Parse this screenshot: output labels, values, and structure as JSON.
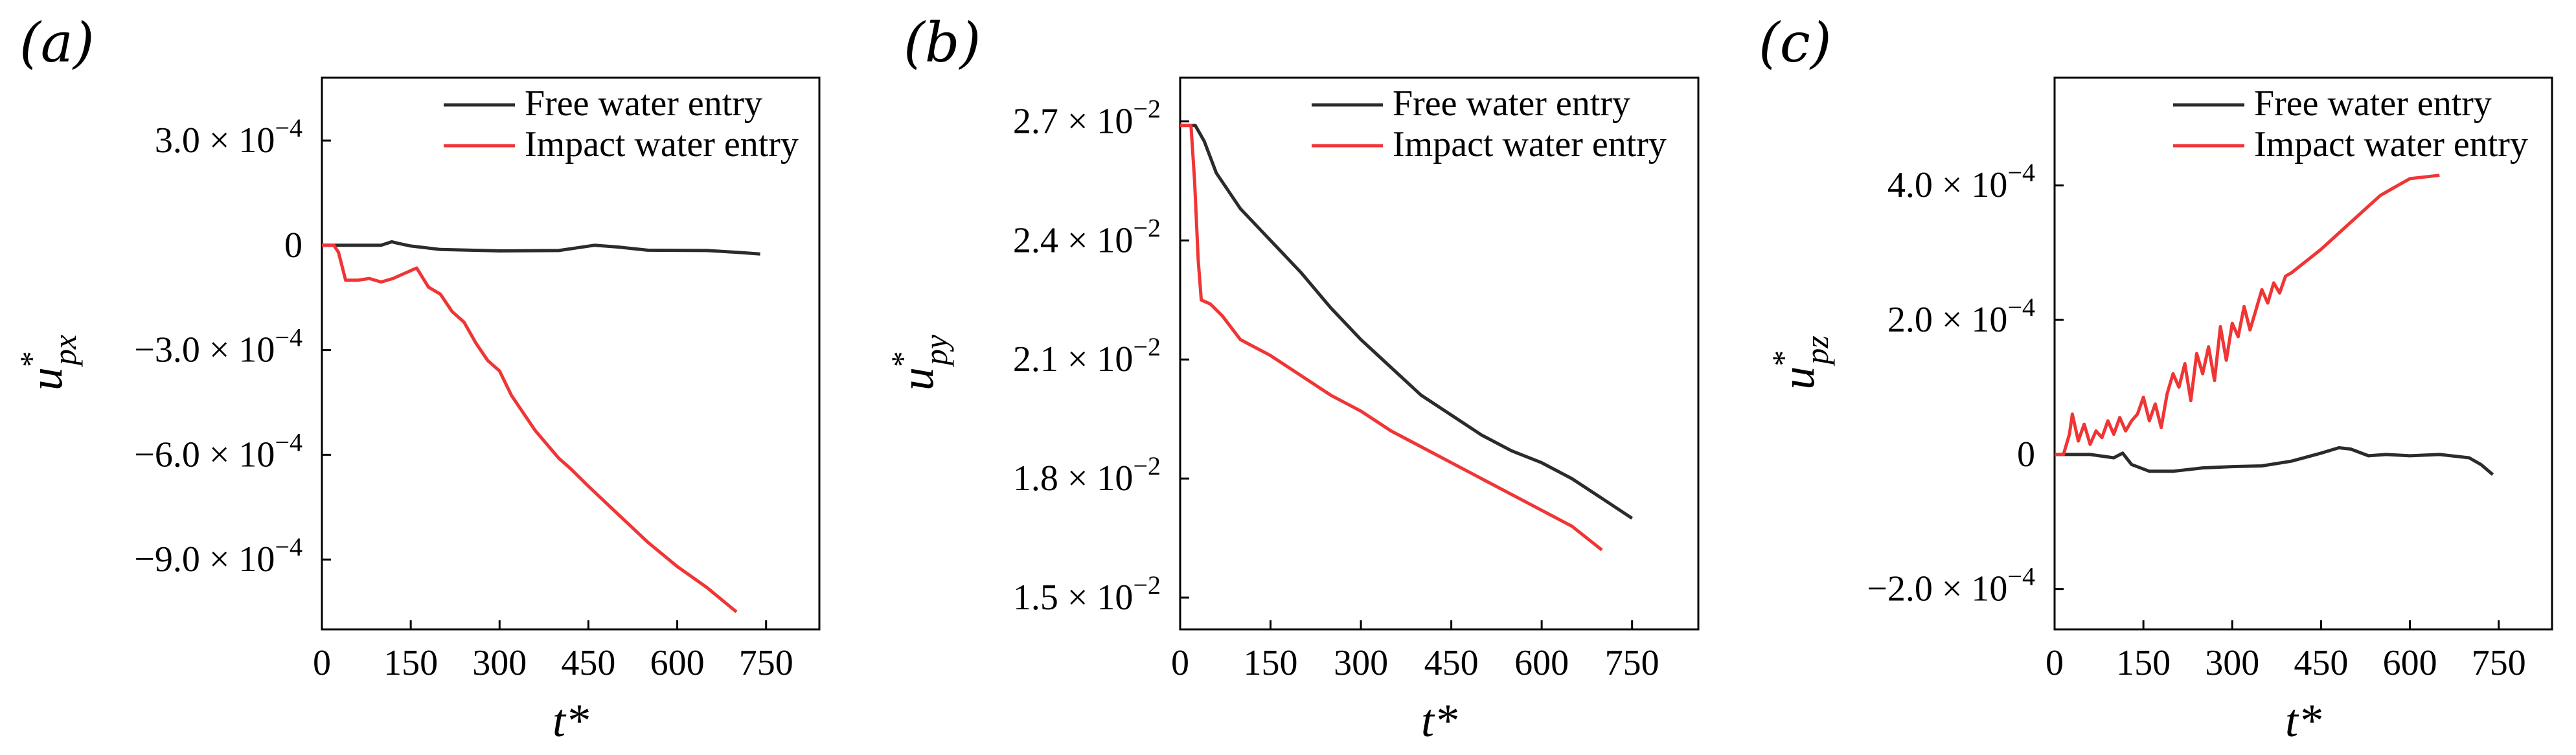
{
  "chart_data": [
    {
      "panel": "(a)",
      "type": "line",
      "ylabel": {
        "main": "u",
        "sub": "px",
        "sup": "*"
      },
      "xlabel": "t*",
      "xlim": [
        0,
        840
      ],
      "ylim": [
        -11.0,
        4.8
      ],
      "xticks": [
        0,
        150,
        300,
        450,
        600,
        750
      ],
      "xtick_labels": [
        "0",
        "150",
        "300",
        "450",
        "600",
        "750"
      ],
      "yticks": [
        3.0,
        0,
        -3.0,
        -6.0,
        -9.0
      ],
      "ytick_labels": [
        {
          "mant": "3.0 × 10",
          "exp": "−4"
        },
        {
          "mant": "0",
          "exp": ""
        },
        {
          "mant": "−3.0 × 10",
          "exp": "−4"
        },
        {
          "mant": "−6.0 × 10",
          "exp": "−4"
        },
        {
          "mant": "−9.0 × 10",
          "exp": "−4"
        }
      ],
      "series": [
        {
          "name": "Free water entry",
          "color": "#2b2b2b",
          "x": [
            0,
            60,
            100,
            118,
            130,
            150,
            200,
            300,
            400,
            460,
            500,
            550,
            650,
            700,
            740
          ],
          "y": [
            0,
            0,
            0,
            0.1,
            0.05,
            -0.02,
            -0.12,
            -0.16,
            -0.15,
            0.0,
            -0.05,
            -0.14,
            -0.15,
            -0.2,
            -0.25
          ]
        },
        {
          "name": "Impact water entry",
          "color": "#f03535",
          "x": [
            0,
            20,
            28,
            40,
            60,
            80,
            100,
            120,
            140,
            160,
            180,
            200,
            220,
            240,
            260,
            280,
            300,
            320,
            340,
            360,
            380,
            400,
            420,
            450,
            500,
            550,
            600,
            650,
            700
          ],
          "y": [
            0,
            0,
            -0.2,
            -1.0,
            -1.0,
            -0.95,
            -1.05,
            -0.95,
            -0.8,
            -0.65,
            -1.2,
            -1.4,
            -1.9,
            -2.2,
            -2.8,
            -3.3,
            -3.6,
            -4.3,
            -4.8,
            -5.3,
            -5.7,
            -6.1,
            -6.4,
            -6.9,
            -7.7,
            -8.5,
            -9.2,
            -9.8,
            -10.5
          ]
        }
      ]
    },
    {
      "panel": "(b)",
      "type": "line",
      "ylabel": {
        "main": "u",
        "sub": "py",
        "sup": "*"
      },
      "xlabel": "t*",
      "xlim": [
        0,
        860
      ],
      "ylim": [
        1.42,
        2.81
      ],
      "xticks": [
        0,
        150,
        300,
        450,
        600,
        750
      ],
      "xtick_labels": [
        "0",
        "150",
        "300",
        "450",
        "600",
        "750"
      ],
      "yticks": [
        2.7,
        2.4,
        2.1,
        1.8,
        1.5
      ],
      "ytick_labels": [
        {
          "mant": "2.7 × 10",
          "exp": "−2"
        },
        {
          "mant": "2.4 × 10",
          "exp": "−2"
        },
        {
          "mant": "2.1 × 10",
          "exp": "−2"
        },
        {
          "mant": "1.8 × 10",
          "exp": "−2"
        },
        {
          "mant": "1.5 × 10",
          "exp": "−2"
        }
      ],
      "series": [
        {
          "name": "Free water entry",
          "color": "#2b2b2b",
          "x": [
            0,
            25,
            40,
            60,
            100,
            150,
            200,
            250,
            300,
            350,
            400,
            450,
            500,
            550,
            600,
            650,
            700,
            750
          ],
          "y": [
            2.69,
            2.69,
            2.65,
            2.57,
            2.48,
            2.4,
            2.32,
            2.23,
            2.15,
            2.08,
            2.01,
            1.96,
            1.91,
            1.87,
            1.84,
            1.8,
            1.75,
            1.7
          ]
        },
        {
          "name": "Impact water entry",
          "color": "#f03535",
          "x": [
            0,
            18,
            24,
            30,
            35,
            50,
            70,
            100,
            150,
            200,
            250,
            300,
            350,
            400,
            450,
            500,
            550,
            600,
            650,
            700
          ],
          "y": [
            2.69,
            2.69,
            2.55,
            2.35,
            2.25,
            2.24,
            2.21,
            2.15,
            2.11,
            2.06,
            2.01,
            1.97,
            1.92,
            1.88,
            1.84,
            1.8,
            1.76,
            1.72,
            1.68,
            1.62
          ]
        }
      ]
    },
    {
      "panel": "(c)",
      "type": "line",
      "ylabel": {
        "main": "u",
        "sub": "pz",
        "sup": "*"
      },
      "xlabel": "t*",
      "xlim": [
        0,
        840
      ],
      "ylim": [
        -2.6,
        5.6
      ],
      "xticks": [
        0,
        150,
        300,
        450,
        600,
        750
      ],
      "xtick_labels": [
        "0",
        "150",
        "300",
        "450",
        "600",
        "750"
      ],
      "yticks": [
        4.0,
        2.0,
        0,
        -2.0
      ],
      "ytick_labels": [
        {
          "mant": "4.0 × 10",
          "exp": "−4"
        },
        {
          "mant": "2.0 × 10",
          "exp": "−4"
        },
        {
          "mant": "0",
          "exp": ""
        },
        {
          "mant": "−2.0 × 10",
          "exp": "−4"
        }
      ],
      "series": [
        {
          "name": "Free water entry",
          "color": "#2b2b2b",
          "x": [
            0,
            60,
            100,
            115,
            130,
            160,
            200,
            250,
            300,
            350,
            400,
            450,
            480,
            500,
            530,
            560,
            600,
            650,
            700,
            720,
            740
          ],
          "y": [
            0,
            0,
            -0.05,
            0.02,
            -0.15,
            -0.25,
            -0.25,
            -0.2,
            -0.18,
            -0.17,
            -0.1,
            0.02,
            0.1,
            0.08,
            -0.02,
            0.0,
            -0.02,
            0.0,
            -0.05,
            -0.15,
            -0.3
          ]
        },
        {
          "name": "Impact water entry",
          "color": "#f03535",
          "x": [
            0,
            15,
            25,
            30,
            40,
            50,
            60,
            70,
            80,
            90,
            100,
            110,
            120,
            130,
            140,
            150,
            160,
            170,
            180,
            190,
            200,
            210,
            220,
            230,
            240,
            250,
            260,
            270,
            280,
            290,
            300,
            310,
            320,
            330,
            340,
            350,
            360,
            370,
            380,
            390,
            400,
            450,
            500,
            550,
            580,
            600,
            620,
            650
          ],
          "y": [
            0,
            0,
            0.3,
            0.6,
            0.2,
            0.45,
            0.15,
            0.35,
            0.25,
            0.5,
            0.3,
            0.55,
            0.35,
            0.5,
            0.6,
            0.85,
            0.5,
            0.75,
            0.4,
            0.9,
            1.2,
            1.0,
            1.35,
            0.8,
            1.5,
            1.2,
            1.6,
            1.1,
            1.9,
            1.4,
            1.95,
            1.75,
            2.2,
            1.85,
            2.15,
            2.45,
            2.25,
            2.55,
            2.4,
            2.65,
            2.7,
            3.05,
            3.45,
            3.85,
            4.0,
            4.1,
            4.12,
            4.15
          ]
        }
      ]
    }
  ]
}
